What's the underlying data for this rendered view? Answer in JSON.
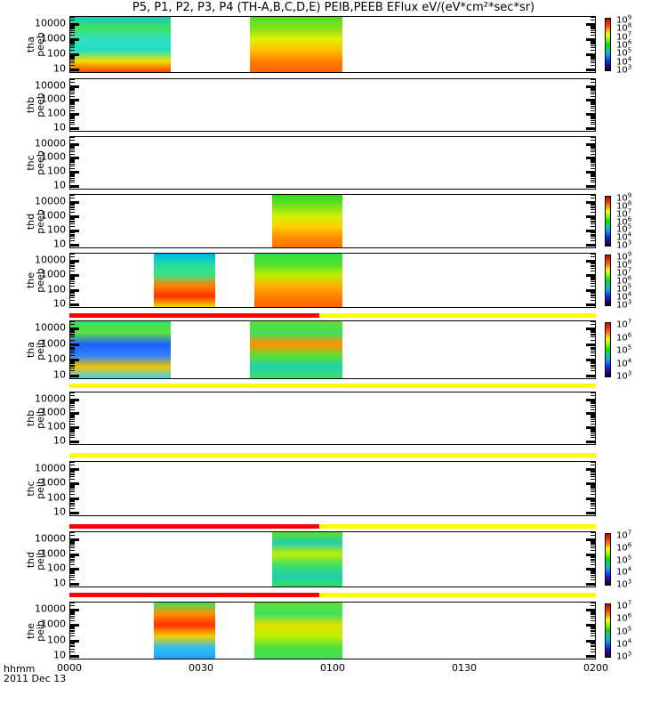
{
  "title": "P5, P1, P2, P3, P4 (TH-A,B,C,D,E) PEIB,PEEB EFlux eV/(eV*cm²*sec*sr)",
  "footer": {
    "unit": "hhmm",
    "date": "2011 Dec 13"
  },
  "chart_data": {
    "type": "heatmap",
    "title": "P5, P1, P2, P3, P4 (TH-A,B,C,D,E) PEIB,PEEB EFlux eV/(eV*cm²*sec*sr)",
    "xlabel": "hhmm",
    "x_ticks": [
      "0000",
      "0030",
      "0100",
      "0130",
      "0200"
    ],
    "x_range_minutes": [
      0,
      120
    ],
    "y_ticks": [
      "10",
      "100",
      "1000",
      "10000"
    ],
    "y_range": [
      5,
      30000
    ],
    "y_scale": "log",
    "colors": {
      "red": "#ff0000",
      "yellow": "#ffff00"
    },
    "panels": [
      {
        "probe": "tha",
        "product": "peeb",
        "blocks": [
          {
            "start": 0,
            "end": 23,
            "profile": [
              "#10d0c0",
              "#40e060",
              "#30e0c0",
              "#20e0c0",
              "#f0e000",
              "#ff4000"
            ]
          },
          {
            "start": 41,
            "end": 62,
            "profile": [
              "#50e020",
              "#80e020",
              "#e0f000",
              "#ffc000",
              "#ff8000",
              "#ff6000"
            ]
          }
        ],
        "colorbar": [
          "9",
          "8",
          "7",
          "6",
          "5",
          "4",
          "3"
        ]
      },
      {
        "probe": "thb",
        "product": "peeb",
        "blocks": []
      },
      {
        "probe": "thc",
        "product": "peeb",
        "blocks": []
      },
      {
        "probe": "thd",
        "product": "peeb",
        "blocks": [
          {
            "start": 46,
            "end": 62,
            "profile": [
              "#20e020",
              "#70e020",
              "#d0f000",
              "#ffd000",
              "#ff9000",
              "#ff7000"
            ]
          }
        ],
        "colorbar": [
          "9",
          "8",
          "7",
          "6",
          "5",
          "4",
          "3"
        ]
      },
      {
        "probe": "the",
        "product": "peeb",
        "blocks": [
          {
            "start": 19,
            "end": 33,
            "profile": [
              "#00b0f0",
              "#20e0a0",
              "#40e080",
              "#ff8000",
              "#ff3000",
              "#f0e000"
            ]
          },
          {
            "start": 42,
            "end": 62,
            "profile": [
              "#30e040",
              "#50e030",
              "#c0f000",
              "#ffb000",
              "#ff8000",
              "#ff6000"
            ]
          }
        ],
        "colorbar": [
          "9",
          "8",
          "7",
          "6",
          "5",
          "4",
          "3"
        ],
        "bar_after": {
          "red": [
            0,
            57
          ],
          "yellow": [
            57,
            120
          ]
        }
      },
      {
        "probe": "tha",
        "product": "peib",
        "blocks": [
          {
            "start": 0,
            "end": 23,
            "profile": [
              "#30e060",
              "#60e040",
              "#2060ff",
              "#3080ff",
              "#f0c000",
              "#40d0ff"
            ]
          },
          {
            "start": 41,
            "end": 62,
            "profile": [
              "#60e030",
              "#40e060",
              "#ff9000",
              "#60e030",
              "#20d0b0",
              "#40e060"
            ]
          }
        ],
        "colorbar": [
          "7",
          "6",
          "5",
          "4",
          "3"
        ],
        "bar_after": {
          "yellow": [
            0,
            120
          ]
        }
      },
      {
        "probe": "thb",
        "product": "peib",
        "blocks": [],
        "bar_after": {
          "yellow": [
            0,
            120
          ]
        }
      },
      {
        "probe": "thc",
        "product": "peib",
        "blocks": [],
        "bar_after": {
          "red": [
            0,
            57
          ],
          "yellow": [
            57,
            120
          ]
        }
      },
      {
        "probe": "thd",
        "product": "peib",
        "blocks": [
          {
            "start": 46,
            "end": 62,
            "profile": [
              "#60e030",
              "#20d0b0",
              "#c0f000",
              "#40e060",
              "#20d0b0",
              "#30e060"
            ]
          }
        ],
        "colorbar": [
          "7",
          "6",
          "5",
          "4",
          "3"
        ],
        "bar_after": {
          "red": [
            0,
            57
          ],
          "yellow": [
            57,
            120
          ]
        }
      },
      {
        "probe": "the",
        "product": "peib",
        "blocks": [
          {
            "start": 19,
            "end": 33,
            "profile": [
              "#40e060",
              "#ff9000",
              "#ff3000",
              "#f0d000",
              "#30c0f0",
              "#20a0ff"
            ]
          },
          {
            "start": 42,
            "end": 62,
            "profile": [
              "#60e030",
              "#40e060",
              "#e0e000",
              "#c0f000",
              "#50e040",
              "#40e060"
            ]
          }
        ],
        "colorbar": [
          "7",
          "6",
          "5",
          "4",
          "3"
        ]
      }
    ]
  }
}
